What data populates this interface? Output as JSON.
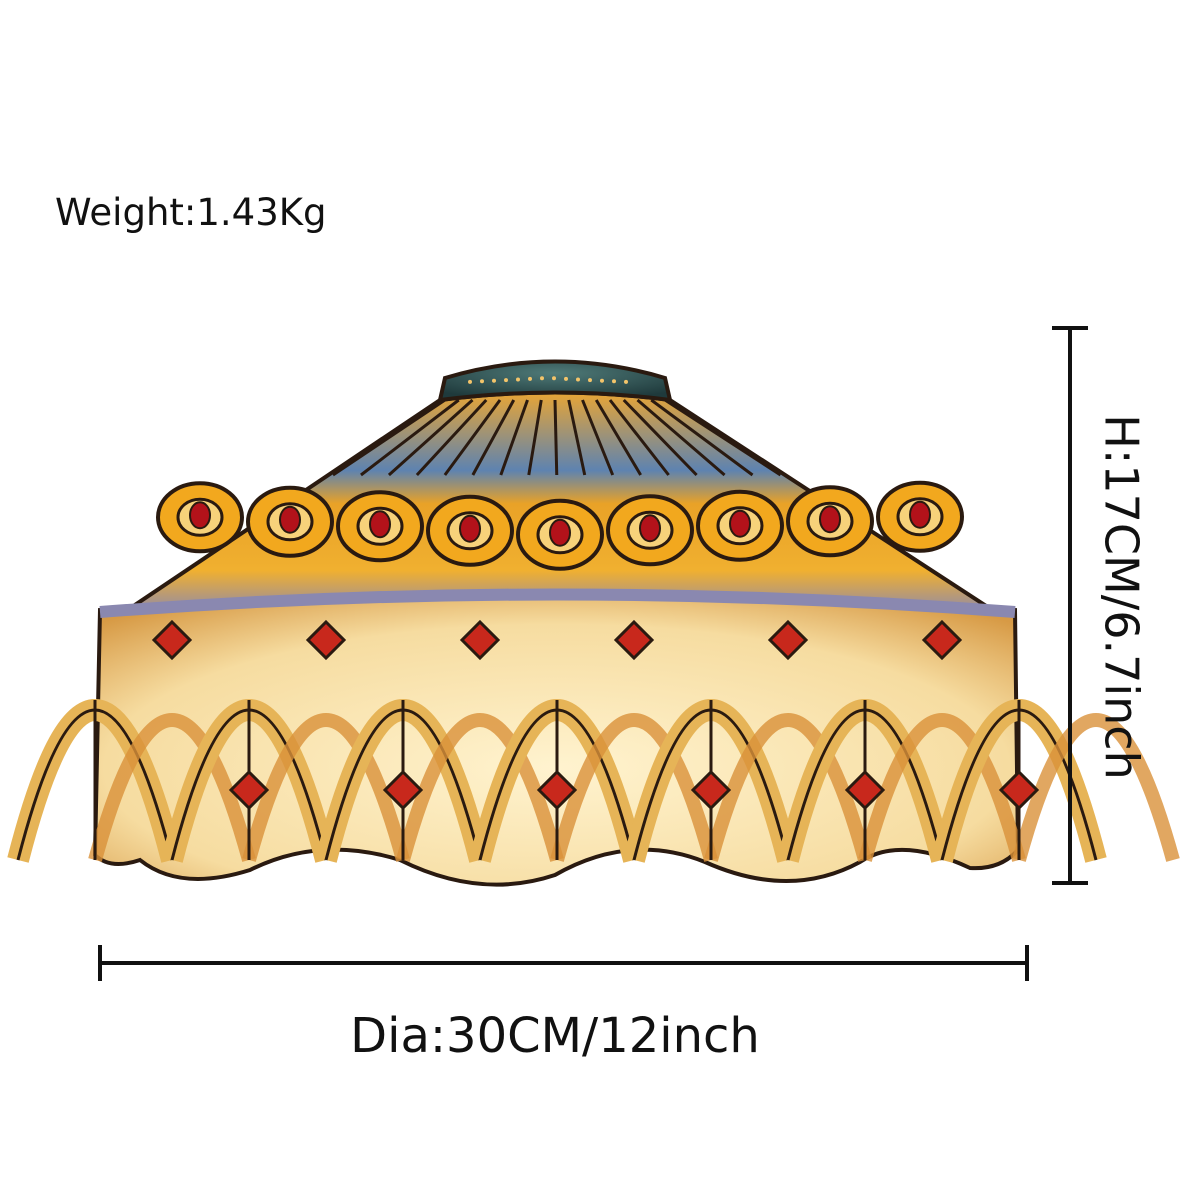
{
  "weight_label": "Weight:1.43Kg",
  "height_label": "H:17CM/6.7inch",
  "diameter_label": "Dia:30CM/12inch"
}
